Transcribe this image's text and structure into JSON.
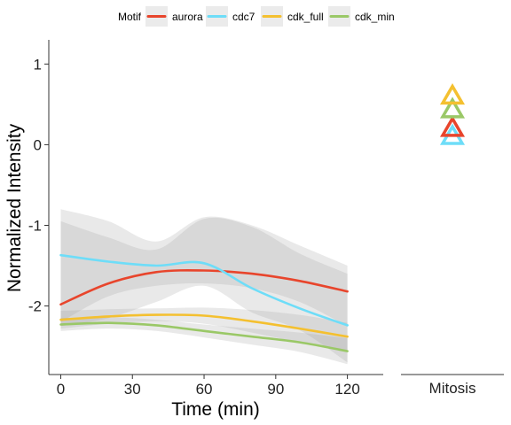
{
  "chart_data": {
    "type": "line",
    "xlabel": "Time (min)",
    "ylabel": "Normalized Intensity",
    "xlim": [
      -5,
      135
    ],
    "ylim": [
      -2.85,
      1.3
    ],
    "xticks": [
      0,
      30,
      60,
      90,
      120
    ],
    "xtick_labels": [
      "0",
      "30",
      "60",
      "90",
      "120"
    ],
    "yticks": [
      1,
      0,
      -1,
      -2
    ],
    "ytick_labels": [
      "1",
      "0",
      "-1",
      "-2"
    ],
    "legend_title": "Motif",
    "legend_position": "top",
    "facet_label": "Mitosis",
    "series": [
      {
        "name": "aurora",
        "color": "#E8452C",
        "x": [
          0,
          20,
          40,
          60,
          80,
          100,
          120
        ],
        "y": [
          -1.98,
          -1.72,
          -1.58,
          -1.56,
          -1.6,
          -1.69,
          -1.82
        ],
        "ci_low": [
          -2.2,
          -1.88,
          -1.75,
          -1.72,
          -1.78,
          -1.95,
          -2.25
        ],
        "ci_high": [
          -0.8,
          -0.95,
          -1.2,
          -0.9,
          -1.0,
          -1.25,
          -1.5
        ],
        "mitosis": 0.22
      },
      {
        "name": "cdc7",
        "color": "#6EDDF8",
        "x": [
          0,
          20,
          40,
          60,
          80,
          100,
          120
        ],
        "y": [
          -1.37,
          -1.45,
          -1.5,
          -1.47,
          -1.78,
          -2.03,
          -2.24
        ],
        "ci_low": [
          -2.25,
          -2.15,
          -1.95,
          -1.75,
          -2.08,
          -2.3,
          -2.7
        ],
        "ci_high": [
          -0.95,
          -1.15,
          -1.3,
          -0.92,
          -1.02,
          -1.35,
          -1.6
        ],
        "mitosis": 0.12
      },
      {
        "name": "cdk_full",
        "color": "#F4C030",
        "x": [
          0,
          20,
          40,
          60,
          80,
          100,
          120
        ],
        "y": [
          -2.17,
          -2.13,
          -2.11,
          -2.12,
          -2.19,
          -2.28,
          -2.38
        ],
        "ci_low": [
          -2.28,
          -2.22,
          -2.19,
          -2.22,
          -2.33,
          -2.45,
          -2.55
        ],
        "ci_high": [
          -2.06,
          -2.04,
          -2.03,
          -2.02,
          -2.05,
          -2.11,
          -2.21
        ],
        "mitosis": 0.62
      },
      {
        "name": "cdk_min",
        "color": "#9AC867",
        "x": [
          0,
          20,
          40,
          60,
          80,
          100,
          120
        ],
        "y": [
          -2.23,
          -2.21,
          -2.24,
          -2.31,
          -2.38,
          -2.45,
          -2.56
        ],
        "ci_low": [
          -2.31,
          -2.28,
          -2.31,
          -2.39,
          -2.48,
          -2.57,
          -2.72
        ],
        "ci_high": [
          -2.15,
          -2.14,
          -2.17,
          -2.23,
          -2.28,
          -2.33,
          -2.4
        ],
        "mitosis": 0.45
      }
    ]
  }
}
